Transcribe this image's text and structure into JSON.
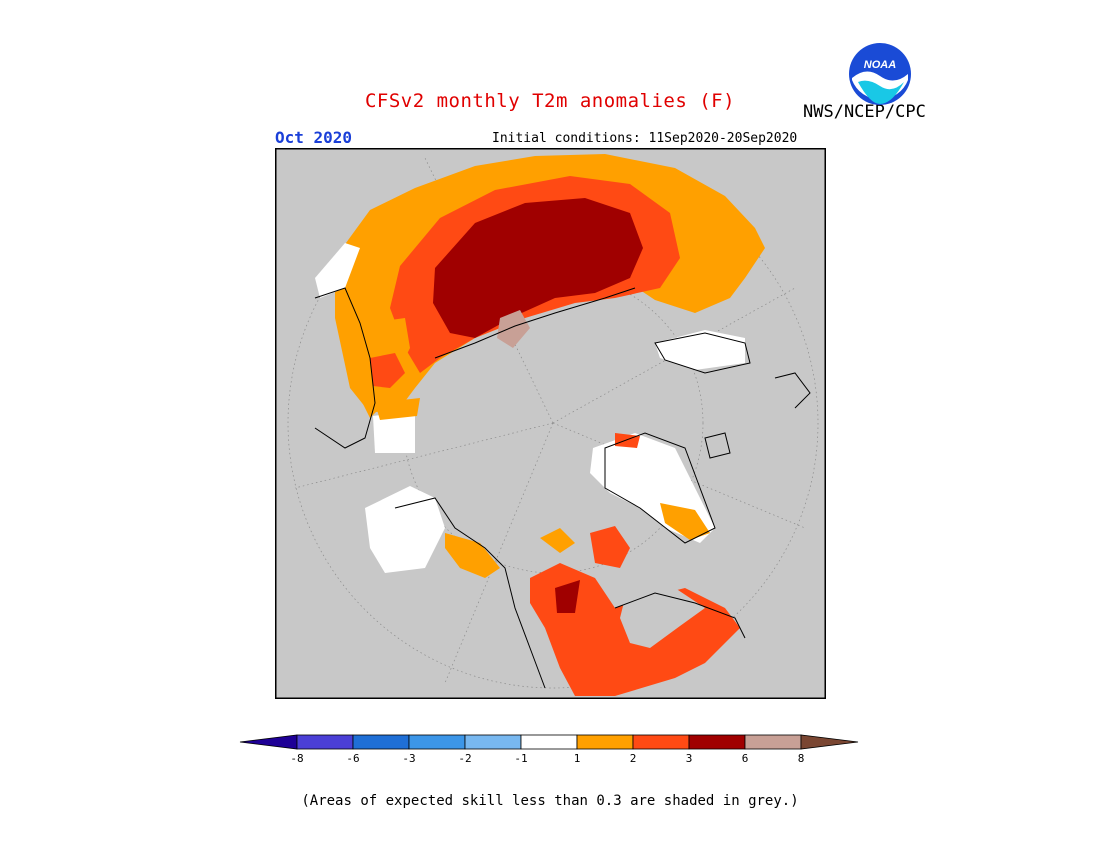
{
  "header": {
    "title": "CFSv2 monthly T2m anomalies (F)",
    "month": "Oct 2020",
    "initial_conditions": "Initial conditions: 11Sep2020-20Sep2020",
    "agency": "NWS/NCEP/CPC",
    "logo_text": "NOAA"
  },
  "colorbar": {
    "labels": [
      "-8",
      "-6",
      "-3",
      "-2",
      "-1",
      "1",
      "2",
      "3",
      "6",
      "8"
    ],
    "colors": [
      "#1e0096",
      "#4b3fd6",
      "#1f6fd6",
      "#3c96e8",
      "#78b8f0",
      "#ffffff",
      "#ffa000",
      "#ff4a14",
      "#a00000",
      "#c8a096",
      "#7a4632"
    ]
  },
  "map": {
    "projection": "north polar stereographic",
    "grey_color": "#c8c8c8",
    "legend_colors": {
      "white": "#ffffff",
      "orange": "#ffa000",
      "red": "#ff4a14",
      "darkred": "#a00000",
      "tan": "#c8a096"
    }
  },
  "footer": {
    "note": "(Areas of expected skill less than 0.3 are shaded in grey.)"
  }
}
